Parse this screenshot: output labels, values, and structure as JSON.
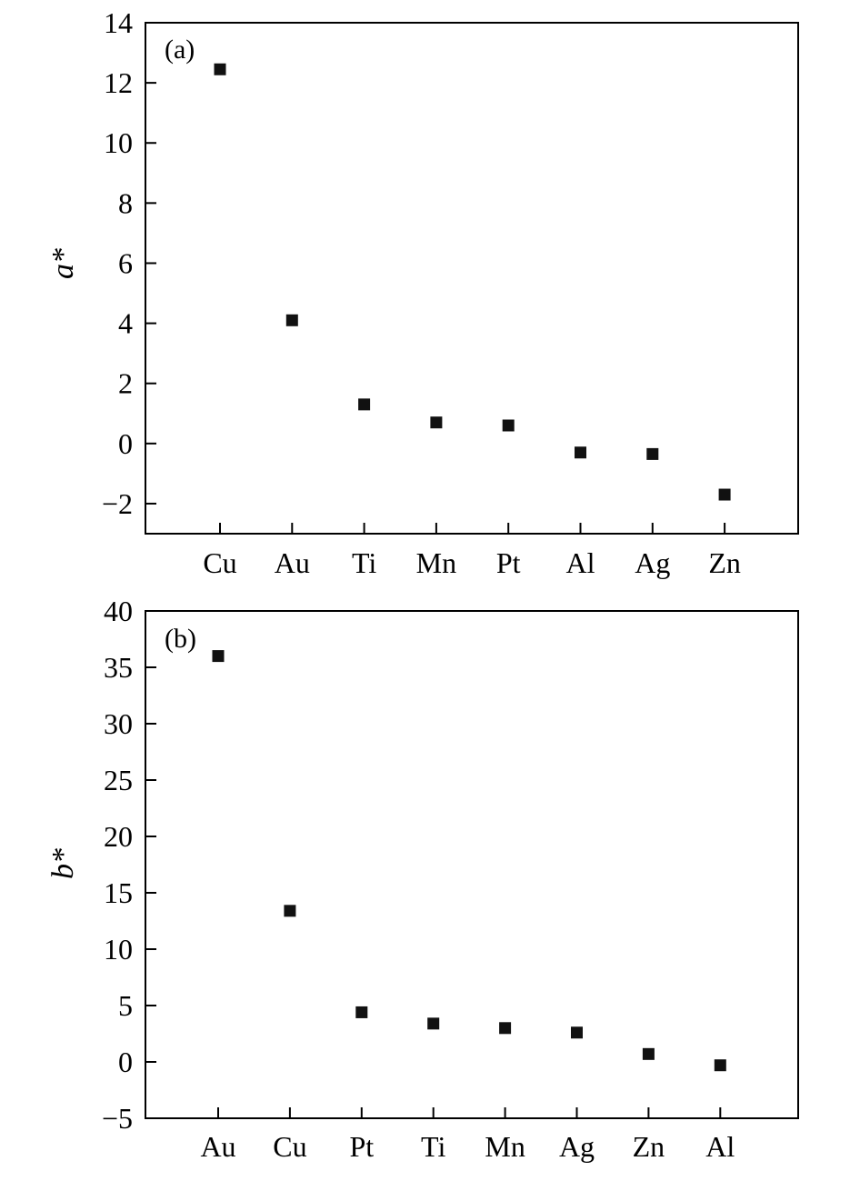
{
  "chart_data": [
    {
      "type": "scatter",
      "panel_label": "(a)",
      "ylabel": "a*",
      "categories": [
        "Cu",
        "Au",
        "Ti",
        "Mn",
        "Pt",
        "Al",
        "Ag",
        "Zn"
      ],
      "values": [
        12.45,
        4.1,
        1.3,
        0.7,
        0.6,
        -0.3,
        -0.35,
        -1.7
      ],
      "ylim": [
        -3,
        14
      ],
      "yticks": [
        14,
        12,
        10,
        8,
        6,
        4,
        2,
        0,
        -2
      ],
      "ytick_labels": [
        "14",
        "12",
        "10",
        "8",
        "6",
        "4",
        "2",
        "0",
        "−2"
      ],
      "marker": "square",
      "color": "#111111",
      "grid": false
    },
    {
      "type": "scatter",
      "panel_label": "(b)",
      "ylabel": "b*",
      "categories": [
        "Au",
        "Cu",
        "Pt",
        "Ti",
        "Mn",
        "Ag",
        "Zn",
        "Al"
      ],
      "values": [
        36,
        13.4,
        4.4,
        3.4,
        3.0,
        2.6,
        0.7,
        -0.3
      ],
      "ylim": [
        -5,
        40
      ],
      "yticks": [
        40,
        35,
        30,
        25,
        20,
        15,
        10,
        5,
        0,
        -5
      ],
      "ytick_labels": [
        "40",
        "35",
        "30",
        "25",
        "20",
        "15",
        "10",
        "5",
        "0",
        "−5"
      ],
      "marker": "square",
      "color": "#111111",
      "grid": false
    }
  ]
}
